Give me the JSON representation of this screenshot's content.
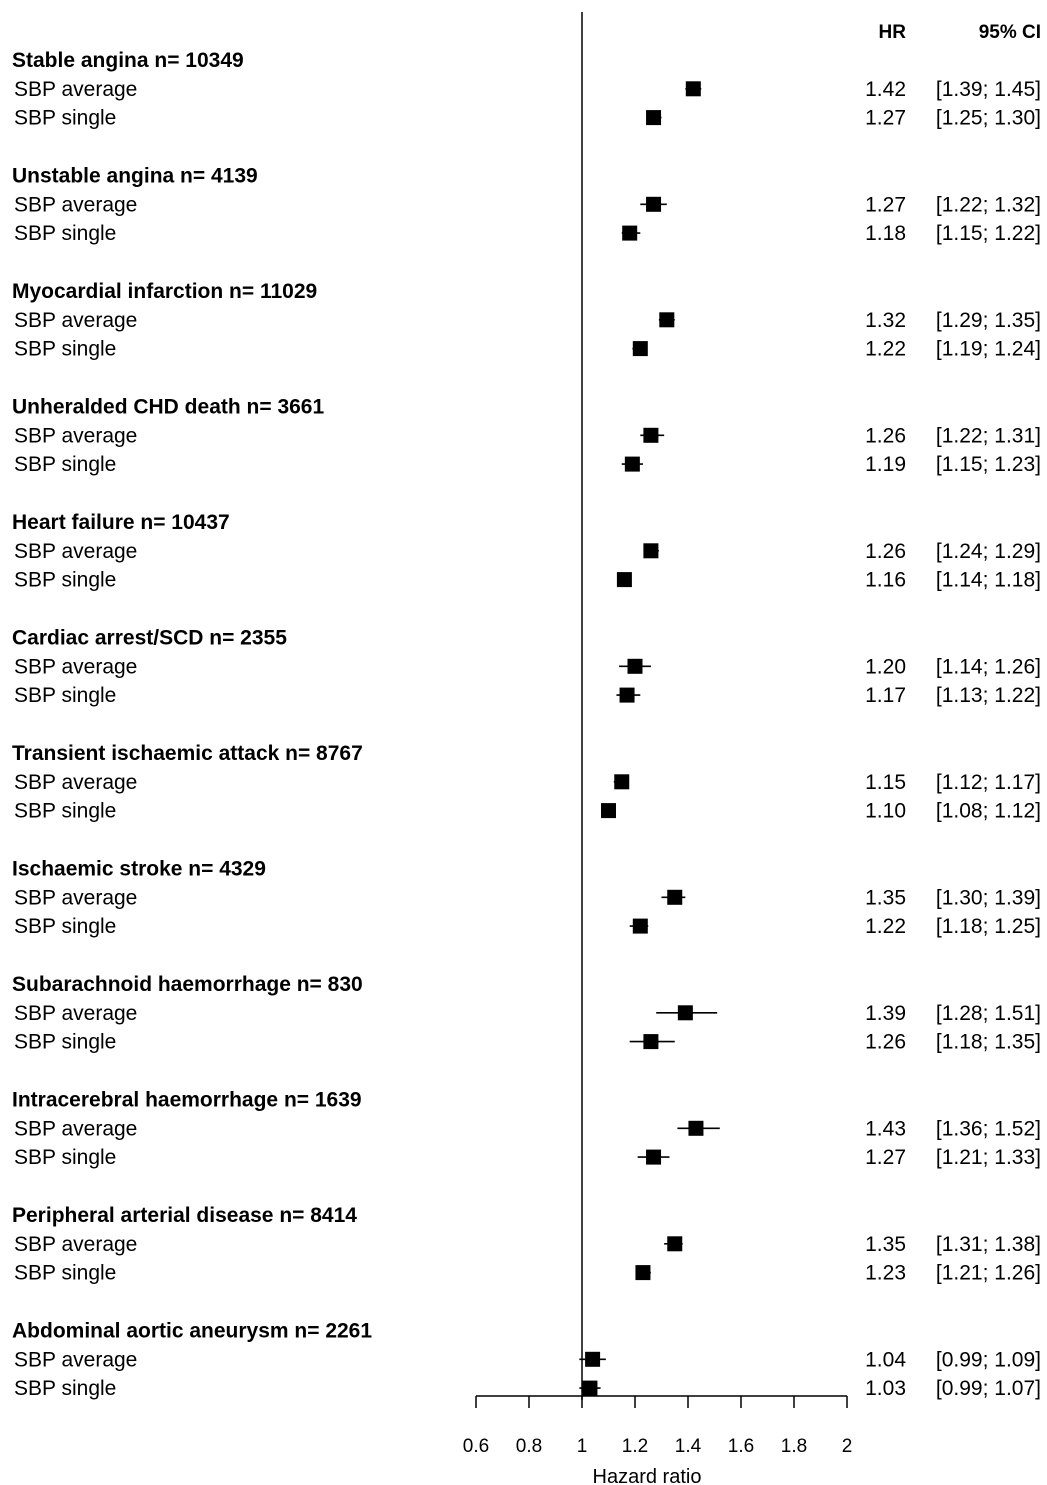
{
  "chart_data": {
    "type": "forest",
    "xlabel": "Hazard ratio",
    "xlim": [
      0.6,
      2.0
    ],
    "xticks": [
      "0.6",
      "0.8",
      "1",
      "1.2",
      "1.4",
      "1.6",
      "1.8",
      "2"
    ],
    "reference_line": 1,
    "header": {
      "hr": "HR",
      "ci": "95% CI"
    },
    "groups": [
      {
        "label": "Stable angina n= 10349",
        "rows": [
          {
            "label": "SBP average",
            "hr": 1.42,
            "lo": 1.39,
            "hi": 1.45,
            "hr_text": "1.42",
            "ci_text": "[1.39; 1.45]"
          },
          {
            "label": "SBP single",
            "hr": 1.27,
            "lo": 1.25,
            "hi": 1.3,
            "hr_text": "1.27",
            "ci_text": "[1.25; 1.30]"
          }
        ]
      },
      {
        "label": "Unstable angina n= 4139",
        "rows": [
          {
            "label": "SBP average",
            "hr": 1.27,
            "lo": 1.22,
            "hi": 1.32,
            "hr_text": "1.27",
            "ci_text": "[1.22; 1.32]"
          },
          {
            "label": "SBP single",
            "hr": 1.18,
            "lo": 1.15,
            "hi": 1.22,
            "hr_text": "1.18",
            "ci_text": "[1.15; 1.22]"
          }
        ]
      },
      {
        "label": "Myocardial infarction n= 11029",
        "rows": [
          {
            "label": "SBP average",
            "hr": 1.32,
            "lo": 1.29,
            "hi": 1.35,
            "hr_text": "1.32",
            "ci_text": "[1.29; 1.35]"
          },
          {
            "label": "SBP single",
            "hr": 1.22,
            "lo": 1.19,
            "hi": 1.24,
            "hr_text": "1.22",
            "ci_text": "[1.19; 1.24]"
          }
        ]
      },
      {
        "label": "Unheralded CHD death n= 3661",
        "rows": [
          {
            "label": "SBP average",
            "hr": 1.26,
            "lo": 1.22,
            "hi": 1.31,
            "hr_text": "1.26",
            "ci_text": "[1.22; 1.31]"
          },
          {
            "label": "SBP single",
            "hr": 1.19,
            "lo": 1.15,
            "hi": 1.23,
            "hr_text": "1.19",
            "ci_text": "[1.15; 1.23]"
          }
        ]
      },
      {
        "label": "Heart failure n= 10437",
        "rows": [
          {
            "label": "SBP average",
            "hr": 1.26,
            "lo": 1.24,
            "hi": 1.29,
            "hr_text": "1.26",
            "ci_text": "[1.24; 1.29]"
          },
          {
            "label": "SBP single",
            "hr": 1.16,
            "lo": 1.14,
            "hi": 1.18,
            "hr_text": "1.16",
            "ci_text": "[1.14; 1.18]"
          }
        ]
      },
      {
        "label": "Cardiac arrest/SCD n= 2355",
        "rows": [
          {
            "label": "SBP average",
            "hr": 1.2,
            "lo": 1.14,
            "hi": 1.26,
            "hr_text": "1.20",
            "ci_text": "[1.14; 1.26]"
          },
          {
            "label": "SBP single",
            "hr": 1.17,
            "lo": 1.13,
            "hi": 1.22,
            "hr_text": "1.17",
            "ci_text": "[1.13; 1.22]"
          }
        ]
      },
      {
        "label": "Transient ischaemic attack n= 8767",
        "rows": [
          {
            "label": "SBP average",
            "hr": 1.15,
            "lo": 1.12,
            "hi": 1.17,
            "hr_text": "1.15",
            "ci_text": "[1.12; 1.17]"
          },
          {
            "label": "SBP single",
            "hr": 1.1,
            "lo": 1.08,
            "hi": 1.12,
            "hr_text": "1.10",
            "ci_text": "[1.08; 1.12]"
          }
        ]
      },
      {
        "label": "Ischaemic stroke n= 4329",
        "rows": [
          {
            "label": "SBP average",
            "hr": 1.35,
            "lo": 1.3,
            "hi": 1.39,
            "hr_text": "1.35",
            "ci_text": "[1.30; 1.39]"
          },
          {
            "label": "SBP single",
            "hr": 1.22,
            "lo": 1.18,
            "hi": 1.25,
            "hr_text": "1.22",
            "ci_text": "[1.18; 1.25]"
          }
        ]
      },
      {
        "label": "Subarachnoid haemorrhage n= 830",
        "rows": [
          {
            "label": "SBP average",
            "hr": 1.39,
            "lo": 1.28,
            "hi": 1.51,
            "hr_text": "1.39",
            "ci_text": "[1.28; 1.51]"
          },
          {
            "label": "SBP single",
            "hr": 1.26,
            "lo": 1.18,
            "hi": 1.35,
            "hr_text": "1.26",
            "ci_text": "[1.18; 1.35]"
          }
        ]
      },
      {
        "label": "Intracerebral haemorrhage n= 1639",
        "rows": [
          {
            "label": "SBP average",
            "hr": 1.43,
            "lo": 1.36,
            "hi": 1.52,
            "hr_text": "1.43",
            "ci_text": "[1.36; 1.52]"
          },
          {
            "label": "SBP single",
            "hr": 1.27,
            "lo": 1.21,
            "hi": 1.33,
            "hr_text": "1.27",
            "ci_text": "[1.21; 1.33]"
          }
        ]
      },
      {
        "label": "Peripheral arterial disease n= 8414",
        "rows": [
          {
            "label": "SBP average",
            "hr": 1.35,
            "lo": 1.31,
            "hi": 1.38,
            "hr_text": "1.35",
            "ci_text": "[1.31; 1.38]"
          },
          {
            "label": "SBP single",
            "hr": 1.23,
            "lo": 1.21,
            "hi": 1.26,
            "hr_text": "1.23",
            "ci_text": "[1.21; 1.26]"
          }
        ]
      },
      {
        "label": "Abdominal aortic aneurysm n= 2261",
        "rows": [
          {
            "label": "SBP average",
            "hr": 1.04,
            "lo": 0.99,
            "hi": 1.09,
            "hr_text": "1.04",
            "ci_text": "[0.99; 1.09]"
          },
          {
            "label": "SBP single",
            "hr": 1.03,
            "lo": 0.99,
            "hi": 1.07,
            "hr_text": "1.03",
            "ci_text": "[0.99; 1.07]"
          }
        ]
      }
    ]
  }
}
